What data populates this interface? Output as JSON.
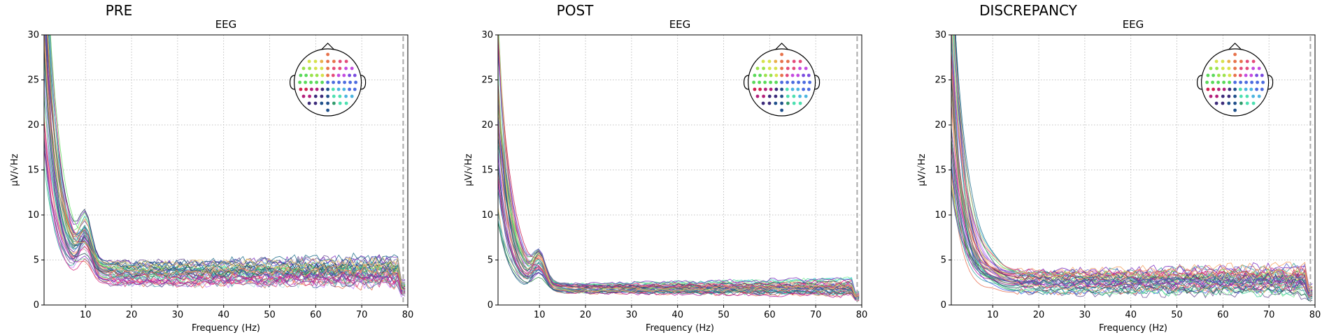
{
  "chart_data": [
    {
      "type": "line",
      "title": "PRE",
      "subtitle": "EEG",
      "xlabel": "Frequency (Hz)",
      "ylabel": "µV/√Hz",
      "xlim": [
        1,
        80
      ],
      "ylim": [
        0,
        30
      ],
      "xticks": [
        10,
        20,
        30,
        40,
        50,
        60,
        70,
        80
      ],
      "yticks": [
        0,
        5,
        10,
        15,
        20,
        25,
        30
      ],
      "grid": true,
      "marker_line_x": 79,
      "sensor_inset": "top-right",
      "profile": {
        "low": 45,
        "alpha_peak": 8,
        "floor": 3.0,
        "floor_spread": 2.5,
        "noise": 0.9,
        "alpha_ratio": 1
      },
      "series_summary": [
        {
          "name": "",
          "x": [
            1,
            5,
            10,
            20,
            30,
            40,
            50,
            60,
            70,
            80
          ],
          "values": [
            40,
            8,
            9,
            3.5,
            2.5,
            2.3,
            2.3,
            2.2,
            2.5,
            1
          ]
        },
        {
          "name": "",
          "x": [
            1,
            5,
            10,
            20,
            30,
            40,
            50,
            60,
            70,
            80
          ],
          "values": [
            18,
            5,
            6,
            3,
            2,
            2,
            1.8,
            1.8,
            2,
            1
          ]
        }
      ]
    },
    {
      "type": "line",
      "title": "POST",
      "subtitle": "EEG",
      "xlabel": "Frequency (Hz)",
      "ylabel": "µV/√Hz",
      "xlim": [
        1,
        80
      ],
      "ylim": [
        0,
        30
      ],
      "xticks": [
        10,
        20,
        30,
        40,
        50,
        60,
        70,
        80
      ],
      "yticks": [
        0,
        5,
        10,
        15,
        20,
        25,
        30
      ],
      "grid": true,
      "marker_line_x": 79,
      "sensor_inset": "top-right",
      "profile": {
        "low": 30,
        "alpha_peak": 6,
        "floor": 1.6,
        "floor_spread": 0.9,
        "noise": 0.35,
        "alpha_ratio": 1
      },
      "series_summary": [
        {
          "name": "",
          "x": [
            1,
            5,
            10,
            20,
            30,
            40,
            50,
            60,
            70,
            80
          ],
          "values": [
            30,
            7,
            8,
            3,
            2,
            1.8,
            1.8,
            1.5,
            2,
            1
          ]
        },
        {
          "name": "",
          "x": [
            1,
            5,
            10,
            20,
            30,
            40,
            50,
            60,
            70,
            80
          ],
          "values": [
            15,
            4,
            4.5,
            2,
            1.5,
            1.4,
            1.4,
            1.2,
            1.5,
            0.8
          ]
        }
      ]
    },
    {
      "type": "line",
      "title": "DISCREPANCY",
      "subtitle": "EEG",
      "xlabel": "Frequency (Hz)",
      "ylabel": "µV/√Hz",
      "xlim": [
        1,
        80
      ],
      "ylim": [
        0,
        30
      ],
      "xticks": [
        10,
        20,
        30,
        40,
        50,
        60,
        70,
        80
      ],
      "yticks": [
        0,
        5,
        10,
        15,
        20,
        25,
        30
      ],
      "grid": true,
      "marker_line_x": 79,
      "sensor_inset": "top-right",
      "profile": {
        "low": 40,
        "alpha_peak": 2,
        "floor": 2.0,
        "floor_spread": 2.4,
        "noise": 0.8,
        "alpha_ratio": 0.3
      },
      "series_summary": [
        {
          "name": "",
          "x": [
            1,
            5,
            10,
            20,
            30,
            40,
            50,
            60,
            70,
            80
          ],
          "values": [
            40,
            9,
            5,
            4,
            4,
            4,
            4.5,
            4.5,
            5.5,
            1
          ]
        },
        {
          "name": "",
          "x": [
            1,
            5,
            10,
            20,
            30,
            40,
            50,
            60,
            70,
            80
          ],
          "values": [
            5,
            1.5,
            1,
            0.8,
            0.7,
            0.7,
            0.7,
            0.6,
            0.8,
            0.4
          ]
        }
      ]
    }
  ],
  "colors": {
    "traces": [
      "#5fe35f",
      "#3ccf9a",
      "#2a9d8f",
      "#1f6f8b",
      "#264653",
      "#3d5a80",
      "#5e60ce",
      "#6a4c93",
      "#7b2cbf",
      "#b5179e",
      "#d63384",
      "#e76f51",
      "#f4a261",
      "#e9c46a",
      "#8ac926",
      "#4cc9f0",
      "#4361ee",
      "#9d4edd",
      "#c77dff",
      "#f72585",
      "#ff8fab",
      "#ffb4a2",
      "#2b9348",
      "#1d3557",
      "#457b9d",
      "#a8dadc",
      "#80ed99",
      "#38a3a5",
      "#22577a",
      "#c9184a"
    ],
    "sensor_dots": [
      "#59d959",
      "#9be24b",
      "#d6e24b",
      "#eab04b",
      "#e7724b",
      "#e44b7a",
      "#c44be0",
      "#7a4be0",
      "#4b6be0",
      "#4bb5e0",
      "#4be0b0",
      "#2f9a6a",
      "#1f4f8a",
      "#3b2a7a",
      "#b31f7a",
      "#d11f4f"
    ]
  }
}
